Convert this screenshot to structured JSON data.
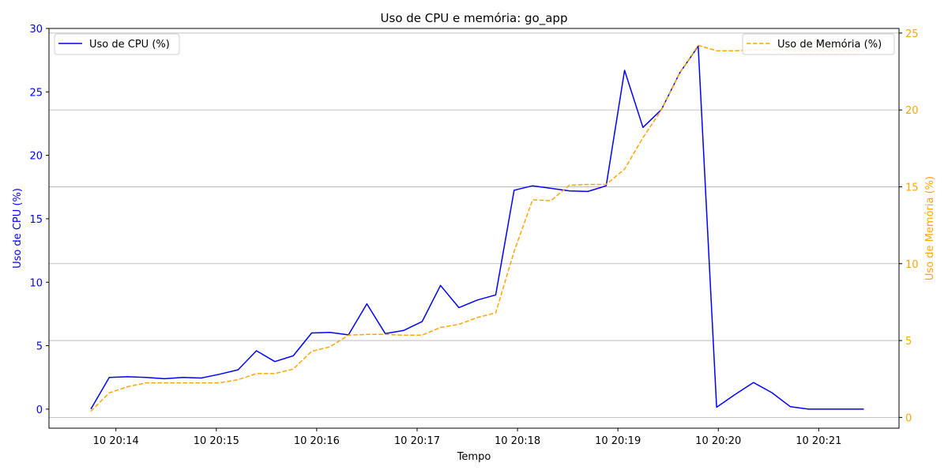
{
  "chart_data": {
    "type": "line",
    "title": "Uso de CPU e memória: go_app",
    "xlabel": "Tempo",
    "ylabel_left": "Uso de CPU (%)",
    "ylabel_right": "Uso de Memória (%)",
    "x_ticks": [
      "10 20:14",
      "10 20:15",
      "10 20:16",
      "10 20:17",
      "10 20:18",
      "10 20:19",
      "10 20:20",
      "10 20:21"
    ],
    "y_left_ticks": [
      "0",
      "5",
      "10",
      "15",
      "20",
      "25",
      "30"
    ],
    "y_right_ticks": [
      "0",
      "5",
      "10",
      "15",
      "20",
      "25"
    ],
    "ylim_left": [
      -1.5,
      30
    ],
    "ylim_right": [
      -0.7,
      25.3
    ],
    "xlim": [
      "20:13:20",
      "20:21:48"
    ],
    "grid": "horizontal, right axis",
    "colors": {
      "cpu": "#0000ff",
      "memory": "#ffa500",
      "grid": "#b0b0b0"
    },
    "legends": {
      "cpu": {
        "label": "Uso de CPU (%)",
        "position": "upper-left"
      },
      "memory": {
        "label": "Uso de Memória (%)",
        "position": "upper-right"
      }
    },
    "x_values": [
      "20:13:45",
      "20:13:56",
      "20:14:07",
      "20:14:18",
      "20:14:29",
      "20:14:40",
      "20:14:51",
      "20:15:02",
      "20:15:13",
      "20:15:24",
      "20:15:35",
      "20:15:46",
      "20:15:57",
      "20:16:08",
      "20:16:19",
      "20:16:30",
      "20:16:41",
      "20:16:52",
      "20:17:03",
      "20:17:14",
      "20:17:25",
      "20:17:36",
      "20:17:47",
      "20:17:58",
      "20:18:09",
      "20:18:20",
      "20:18:31",
      "20:18:42",
      "20:18:53",
      "20:19:04",
      "20:19:15",
      "20:19:26",
      "20:19:37",
      "20:19:48",
      "20:19:59",
      "20:20:10",
      "20:20:21",
      "20:20:32",
      "20:20:43",
      "20:20:54",
      "20:21:05",
      "20:21:16",
      "20:21:27"
    ],
    "series": [
      {
        "name": "Uso de CPU (%)",
        "axis": "left",
        "style": "solid",
        "values": [
          0.0,
          2.5,
          2.55,
          2.5,
          2.4,
          2.5,
          2.45,
          2.75,
          3.1,
          4.6,
          3.75,
          4.2,
          6.0,
          6.05,
          5.85,
          8.3,
          5.95,
          6.2,
          6.9,
          9.75,
          8.0,
          8.6,
          9.0,
          17.25,
          17.6,
          17.4,
          17.2,
          17.15,
          17.6,
          26.7,
          22.2,
          23.6,
          26.5,
          28.6,
          0.15,
          1.15,
          2.1,
          1.3,
          0.2,
          0.0,
          0.0,
          0.0,
          0.0
        ]
      },
      {
        "name": "Uso de Memória (%)",
        "axis": "right",
        "style": "dashed",
        "values": [
          0.4,
          1.6,
          2.0,
          2.25,
          2.25,
          2.25,
          2.25,
          2.25,
          2.45,
          2.85,
          2.85,
          3.15,
          4.3,
          4.6,
          5.35,
          5.4,
          5.4,
          5.35,
          5.35,
          5.85,
          6.05,
          6.5,
          6.8,
          10.8,
          14.15,
          14.1,
          15.1,
          15.15,
          15.15,
          16.15,
          18.2,
          20.0,
          22.4,
          24.2,
          23.85,
          23.85,
          23.9,
          23.9,
          23.85,
          23.85,
          23.85,
          23.85,
          23.85
        ]
      }
    ]
  }
}
